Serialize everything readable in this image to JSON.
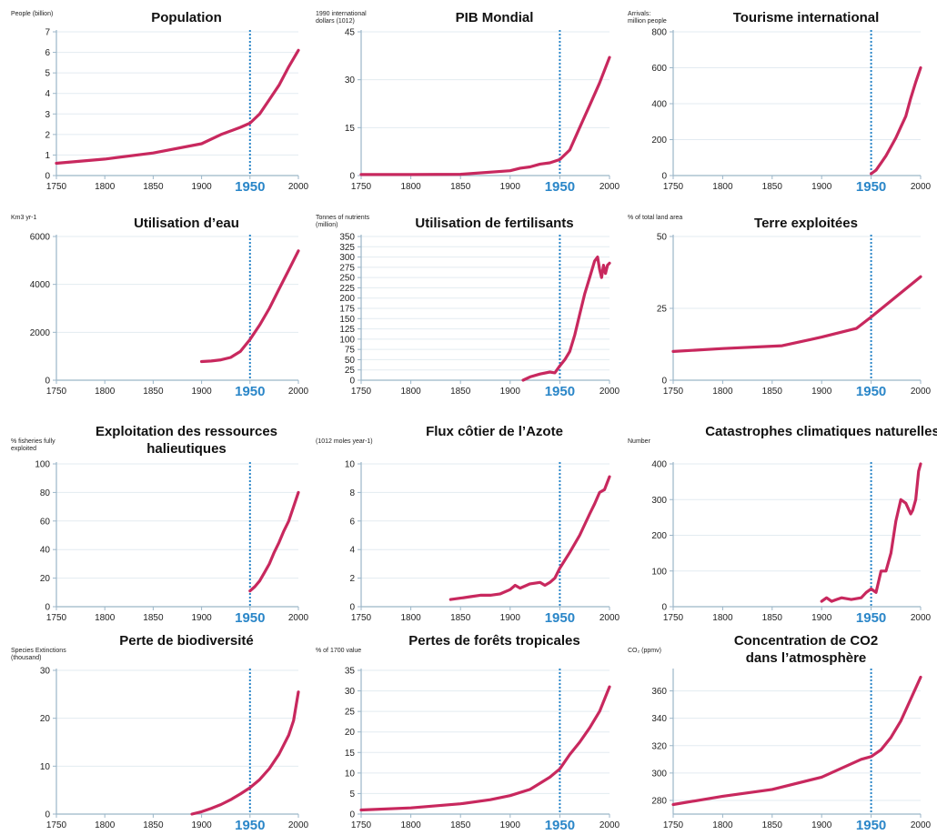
{
  "colors": {
    "line": "#c8285e",
    "marker": "#2a86c8",
    "axis": "#9bb6c8",
    "grid": "#e3ebf1"
  },
  "chart_data": [
    {
      "type": "line",
      "title": "Population",
      "ylabel": "People (billion)",
      "x": [
        1750,
        1800,
        1850,
        1900,
        1920,
        1940,
        1950,
        1960,
        1970,
        1980,
        1990,
        2000
      ],
      "y": [
        0.6,
        0.8,
        1.1,
        1.55,
        2.0,
        2.35,
        2.55,
        3.0,
        3.7,
        4.4,
        5.3,
        6.1
      ],
      "ylim": [
        0,
        7
      ],
      "yticks": [
        0,
        1,
        2,
        3,
        4,
        5,
        6,
        7
      ],
      "xticks": [
        1750,
        1800,
        1850,
        1900,
        1950,
        2000
      ],
      "highlight_x": 1950
    },
    {
      "type": "line",
      "title": "PIB Mondial",
      "ylabel": "1990 international\ndollars (1012)",
      "x": [
        1750,
        1800,
        1850,
        1900,
        1910,
        1920,
        1930,
        1940,
        1950,
        1960,
        1970,
        1980,
        1990,
        2000
      ],
      "y": [
        0.3,
        0.3,
        0.4,
        1.5,
        2.3,
        2.7,
        3.6,
        4.0,
        5.0,
        8.0,
        15,
        22,
        29,
        37
      ],
      "ylim": [
        0,
        45
      ],
      "yticks": [
        0,
        15,
        30,
        45
      ],
      "xticks": [
        1750,
        1800,
        1850,
        1900,
        1950,
        2000
      ],
      "highlight_x": 1950
    },
    {
      "type": "line",
      "title": "Tourisme international",
      "ylabel": "Arrivals:\nmillion people",
      "x": [
        1950,
        1955,
        1960,
        1965,
        1970,
        1975,
        1980,
        1985,
        1990,
        1995,
        2000
      ],
      "y": [
        10,
        30,
        70,
        110,
        160,
        210,
        270,
        330,
        430,
        520,
        600
      ],
      "ylim": [
        0,
        800
      ],
      "yticks": [
        0,
        200,
        400,
        600,
        800
      ],
      "xticks": [
        1750,
        1800,
        1850,
        1900,
        1950,
        2000
      ],
      "highlight_x": 1950
    },
    {
      "type": "line",
      "title": "Utilisation d’eau",
      "ylabel": "Km3 yr-1",
      "x": [
        1900,
        1910,
        1920,
        1930,
        1940,
        1950,
        1960,
        1970,
        1980,
        1990,
        2000
      ],
      "y": [
        780,
        800,
        850,
        950,
        1200,
        1700,
        2300,
        3000,
        3800,
        4600,
        5400
      ],
      "ylim": [
        0,
        6000
      ],
      "yticks": [
        0,
        2000,
        4000,
        6000
      ],
      "xticks": [
        1750,
        1800,
        1850,
        1900,
        1950,
        2000
      ],
      "highlight_x": 1950
    },
    {
      "type": "line",
      "title": "Utilisation de fertilisants",
      "ylabel": "Tonnes of nutrients\n(million)",
      "x": [
        1913,
        1920,
        1930,
        1940,
        1945,
        1950,
        1955,
        1960,
        1965,
        1970,
        1975,
        1980,
        1985,
        1988,
        1990,
        1992,
        1994,
        1996,
        1998,
        2000
      ],
      "y": [
        0,
        8,
        15,
        20,
        18,
        35,
        50,
        70,
        110,
        160,
        210,
        250,
        290,
        300,
        270,
        250,
        280,
        260,
        280,
        285
      ],
      "ylim": [
        0,
        350
      ],
      "yticks": [
        0,
        25,
        50,
        75,
        100,
        125,
        150,
        175,
        200,
        225,
        250,
        275,
        300,
        325,
        350
      ],
      "xticks": [
        1750,
        1800,
        1850,
        1900,
        1950,
        2000
      ],
      "highlight_x": 1950
    },
    {
      "type": "line",
      "title": "Terre exploitées",
      "ylabel": "% of total land area",
      "x": [
        1750,
        1800,
        1860,
        1900,
        1935,
        1950,
        1975,
        2000
      ],
      "y": [
        10,
        11,
        12,
        15,
        18,
        22,
        29,
        36
      ],
      "ylim": [
        0,
        50
      ],
      "yticks": [
        0,
        25,
        50
      ],
      "xticks": [
        1750,
        1800,
        1850,
        1900,
        1950,
        2000
      ],
      "highlight_x": 1950
    },
    {
      "type": "line",
      "title": "Exploitation des ressources\nhalieutiques",
      "ylabel": "% fisheries fully\nexploited",
      "x": [
        1950,
        1955,
        1960,
        1965,
        1970,
        1975,
        1980,
        1985,
        1990,
        1995,
        2000
      ],
      "y": [
        11,
        14,
        18,
        24,
        30,
        38,
        45,
        53,
        60,
        70,
        80
      ],
      "ylim": [
        0,
        100
      ],
      "yticks": [
        0,
        20,
        40,
        60,
        80,
        100
      ],
      "xticks": [
        1750,
        1800,
        1850,
        1900,
        1950,
        2000
      ],
      "highlight_x": 1950
    },
    {
      "type": "line",
      "title": "Flux côtier de l’Azote",
      "ylabel": "(1012 moles year-1)",
      "x": [
        1840,
        1850,
        1860,
        1870,
        1880,
        1890,
        1900,
        1905,
        1910,
        1920,
        1930,
        1935,
        1940,
        1945,
        1950,
        1960,
        1970,
        1980,
        1985,
        1990,
        1995,
        2000
      ],
      "y": [
        0.5,
        0.6,
        0.7,
        0.8,
        0.8,
        0.9,
        1.2,
        1.5,
        1.3,
        1.6,
        1.7,
        1.5,
        1.7,
        2.0,
        2.7,
        3.8,
        5.0,
        6.5,
        7.2,
        8.0,
        8.2,
        9.1
      ],
      "ylim": [
        0,
        10
      ],
      "yticks": [
        0,
        2,
        4,
        6,
        8,
        10
      ],
      "xticks": [
        1750,
        1800,
        1850,
        1900,
        1950,
        2000
      ],
      "highlight_x": 1950
    },
    {
      "type": "line",
      "title": "Catastrophes climatiques naturelles",
      "ylabel": "Number",
      "x": [
        1900,
        1905,
        1910,
        1915,
        1920,
        1930,
        1940,
        1945,
        1950,
        1955,
        1960,
        1965,
        1970,
        1975,
        1980,
        1985,
        1990,
        1992,
        1995,
        1998,
        2000
      ],
      "y": [
        15,
        25,
        15,
        20,
        25,
        20,
        25,
        40,
        50,
        40,
        100,
        100,
        150,
        240,
        300,
        290,
        260,
        270,
        300,
        380,
        400
      ],
      "ylim": [
        0,
        400
      ],
      "yticks": [
        0,
        100,
        200,
        300,
        400
      ],
      "xticks": [
        1750,
        1800,
        1850,
        1900,
        1950,
        2000
      ],
      "highlight_x": 1950
    },
    {
      "type": "line",
      "title": "Perte de biodiversité",
      "ylabel": "Species Extinctions\n(thousand)",
      "x": [
        1890,
        1900,
        1910,
        1920,
        1930,
        1940,
        1950,
        1960,
        1970,
        1980,
        1990,
        1995,
        2000
      ],
      "y": [
        0,
        0.5,
        1.2,
        2.0,
        3.0,
        4.2,
        5.5,
        7.2,
        9.5,
        12.5,
        16.5,
        19.5,
        25.5
      ],
      "ylim": [
        0,
        30
      ],
      "yticks": [
        0,
        10,
        20,
        30
      ],
      "xticks": [
        1750,
        1800,
        1850,
        1900,
        1950,
        2000
      ],
      "highlight_x": 1950
    },
    {
      "type": "line",
      "title": "Pertes de forêts tropicales",
      "ylabel": "% of 1700 value",
      "x": [
        1750,
        1800,
        1850,
        1880,
        1900,
        1920,
        1930,
        1940,
        1950,
        1960,
        1970,
        1980,
        1990,
        2000
      ],
      "y": [
        1,
        1.5,
        2.5,
        3.5,
        4.5,
        6,
        7.5,
        9,
        11,
        14.5,
        17.5,
        21,
        25,
        31
      ],
      "ylim": [
        0,
        35
      ],
      "yticks": [
        0,
        5,
        10,
        15,
        20,
        25,
        30,
        35
      ],
      "xticks": [
        1750,
        1800,
        1850,
        1900,
        1950,
        2000
      ],
      "highlight_x": 1950
    },
    {
      "type": "line",
      "title": "Concentration de CO2\ndans l’atmosphère",
      "ylabel": "CO₂ (ppmv)",
      "x": [
        1750,
        1800,
        1850,
        1900,
        1940,
        1950,
        1960,
        1970,
        1980,
        1990,
        2000
      ],
      "y": [
        277,
        283,
        288,
        297,
        310,
        312,
        317,
        326,
        338,
        354,
        370
      ],
      "ylim": [
        270,
        375
      ],
      "yticks": [
        280,
        300,
        320,
        340,
        360
      ],
      "xticks": [
        1750,
        1800,
        1850,
        1900,
        1950,
        2000
      ],
      "highlight_x": 1950
    }
  ]
}
